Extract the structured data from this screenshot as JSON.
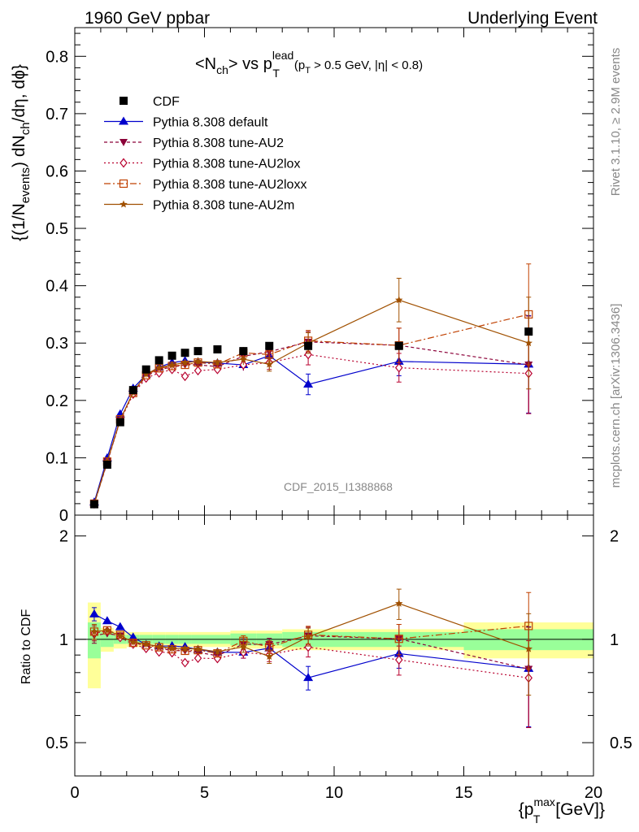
{
  "header": {
    "left": "1960 GeV ppbar",
    "right": "Underlying Event"
  },
  "side_labels": {
    "rivet": "Rivet 3.1.10, ≥ 2.9M events",
    "mcplots": "mcplots.cern.ch [arXiv:1306.3436]"
  },
  "watermark": "CDF_2015_I1388868",
  "title": {
    "lhs": "<N",
    "lhs_sub": "ch",
    "mid": "> vs p",
    "mid_sup": "lead",
    "mid_sub": "T",
    "cut": "(p",
    "cut_sub": "T",
    "cut_rest": " > 0.5 GeV, |η| < 0.8)"
  },
  "ylabel_main": {
    "a": "{(1/N",
    "a_sub": "events",
    "b": ") dN",
    "b_sub": "ch",
    "c": "/dη, dϕ}"
  },
  "ylabel_ratio": "Ratio to CDF",
  "xlabel": {
    "a": "{p",
    "a_sup": "max",
    "a_sub": "T",
    "b": " [GeV]}"
  },
  "colors": {
    "cdf": "#000000",
    "default": "#0000cc",
    "au2": "#8b0038",
    "au2lox": "#b8002e",
    "au2loxx": "#c04000",
    "au2m": "#a05000",
    "band_inner": "#99ff99",
    "band_outer": "#ffff99"
  },
  "chart_data": {
    "type": "scatter",
    "xlabel": "{p_T^max [GeV]}",
    "ylabel": "{(1/N_events) dN_ch/dη, dϕ}",
    "xlim": [
      0,
      20
    ],
    "ylim": [
      0,
      0.85
    ],
    "ratio_ylim": [
      0.4,
      2.3
    ],
    "ratio_scale": "log",
    "x_ticks": [
      "0",
      "5",
      "10",
      "15",
      "20"
    ],
    "y_ticks": [
      "0",
      "0.1",
      "0.2",
      "0.3",
      "0.4",
      "0.5",
      "0.6",
      "0.7",
      "0.8"
    ],
    "ratio_ticks": [
      "0.5",
      "1",
      "2"
    ],
    "legend_position": "top-left",
    "x": [
      0.75,
      1.25,
      1.75,
      2.25,
      2.75,
      3.25,
      3.75,
      4.25,
      4.75,
      5.5,
      6.5,
      7.5,
      9.0,
      12.5,
      17.5
    ],
    "x_err": [
      0.25,
      0.25,
      0.25,
      0.25,
      0.25,
      0.25,
      0.25,
      0.25,
      0.25,
      0.5,
      0.5,
      0.5,
      1.0,
      2.5,
      2.5
    ],
    "series": [
      {
        "name": "CDF",
        "style": "data",
        "values": [
          0.019,
          0.088,
          0.162,
          0.218,
          0.254,
          0.27,
          0.278,
          0.283,
          0.286,
          0.289,
          0.286,
          0.295,
          0.295,
          0.295,
          0.32
        ],
        "ratio_band_inner": [
          0.12,
          0.05,
          0.03,
          0.03,
          0.03,
          0.03,
          0.03,
          0.03,
          0.03,
          0.03,
          0.04,
          0.04,
          0.05,
          0.05,
          0.07
        ],
        "ratio_band_outer": [
          0.28,
          0.08,
          0.06,
          0.05,
          0.05,
          0.05,
          0.05,
          0.05,
          0.05,
          0.05,
          0.06,
          0.06,
          0.07,
          0.07,
          0.12
        ]
      },
      {
        "name": "Pythia 8.308 default",
        "style": "default",
        "values": [
          0.0225,
          0.0995,
          0.176,
          0.221,
          0.245,
          0.258,
          0.266,
          0.269,
          0.267,
          0.265,
          0.262,
          0.278,
          0.228,
          0.268,
          0.263
        ],
        "errors": [
          0.001,
          0.002,
          0.003,
          0.004,
          0.004,
          0.005,
          0.006,
          0.006,
          0.007,
          0.007,
          0.01,
          0.012,
          0.018,
          0.025,
          0.085
        ]
      },
      {
        "name": "Pythia 8.308 tune-AU2",
        "style": "au2",
        "values": [
          0.0195,
          0.0915,
          0.166,
          0.214,
          0.242,
          0.254,
          0.258,
          0.262,
          0.262,
          0.259,
          0.277,
          0.285,
          0.302,
          0.296,
          0.262
        ],
        "errors": [
          0.001,
          0.002,
          0.003,
          0.004,
          0.004,
          0.005,
          0.006,
          0.006,
          0.007,
          0.007,
          0.01,
          0.012,
          0.018,
          0.03,
          0.085
        ]
      },
      {
        "name": "Pythia 8.308 tune-AU2lox",
        "style": "au2lox",
        "values": [
          0.0198,
          0.093,
          0.164,
          0.211,
          0.239,
          0.248,
          0.254,
          0.242,
          0.252,
          0.254,
          0.262,
          0.266,
          0.28,
          0.257,
          0.247
        ],
        "errors": [
          0.001,
          0.002,
          0.003,
          0.004,
          0.004,
          0.005,
          0.006,
          0.006,
          0.007,
          0.007,
          0.01,
          0.012,
          0.018,
          0.025,
          0.07
        ]
      },
      {
        "name": "Pythia 8.308 tune-AU2loxx",
        "style": "au2loxx",
        "values": [
          0.02,
          0.0935,
          0.167,
          0.213,
          0.244,
          0.256,
          0.26,
          0.262,
          0.266,
          0.263,
          0.283,
          0.28,
          0.304,
          0.296,
          0.35
        ],
        "errors": [
          0.001,
          0.002,
          0.003,
          0.004,
          0.004,
          0.005,
          0.006,
          0.006,
          0.007,
          0.007,
          0.01,
          0.012,
          0.018,
          0.03,
          0.088
        ]
      },
      {
        "name": "Pythia 8.308 tune-AU2m",
        "style": "au2m",
        "values": [
          0.02,
          0.0935,
          0.166,
          0.214,
          0.246,
          0.257,
          0.262,
          0.266,
          0.268,
          0.266,
          0.272,
          0.263,
          0.3,
          0.375,
          0.3
        ],
        "errors": [
          0.001,
          0.002,
          0.003,
          0.004,
          0.004,
          0.005,
          0.006,
          0.006,
          0.007,
          0.007,
          0.01,
          0.012,
          0.018,
          0.038,
          0.08
        ]
      }
    ]
  }
}
